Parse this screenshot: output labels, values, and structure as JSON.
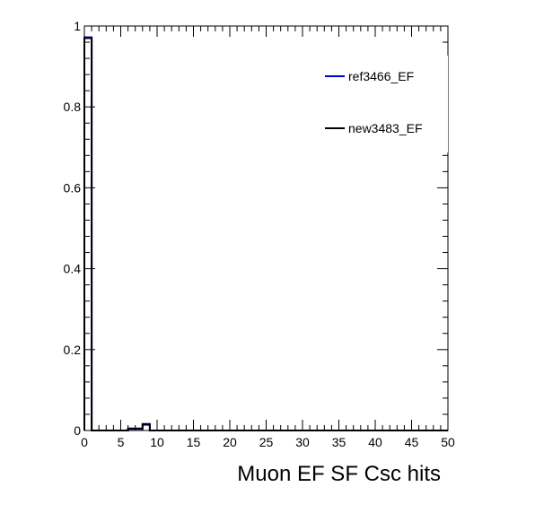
{
  "chart_data": {
    "type": "histogram",
    "title": "",
    "xlabel": "Muon EF SF Csc hits",
    "ylabel": "",
    "xlim": [
      0,
      50
    ],
    "ylim": [
      0,
      1.0
    ],
    "x_ticks": [
      0,
      5,
      10,
      15,
      20,
      25,
      30,
      35,
      40,
      45,
      50
    ],
    "y_ticks": [
      0,
      0.2,
      0.4,
      0.6,
      0.8,
      1
    ],
    "x_tick_labels": [
      "0",
      "5",
      "10",
      "15",
      "20",
      "25",
      "30",
      "35",
      "40",
      "45",
      "50"
    ],
    "y_tick_labels": [
      "0",
      "0.2",
      "0.4",
      "0.6",
      "0.8",
      "1"
    ],
    "bin_edges": [
      0,
      1,
      2,
      3,
      4,
      5,
      6,
      7,
      8,
      9,
      10,
      11,
      12,
      13,
      14,
      15,
      16,
      17,
      18,
      19,
      20,
      21,
      22,
      23,
      24,
      25,
      26,
      27,
      28,
      29,
      30,
      31,
      32,
      33,
      34,
      35,
      36,
      37,
      38,
      39,
      40,
      41,
      42,
      43,
      44,
      45,
      46,
      47,
      48,
      49,
      50
    ],
    "series": [
      {
        "name": "ref3466_EF",
        "color": "#0000cc",
        "values": [
          0.972,
          0,
          0,
          0,
          0,
          0,
          0.004,
          0.004,
          0.014,
          0,
          0,
          0,
          0,
          0,
          0,
          0,
          0,
          0,
          0,
          0,
          0,
          0,
          0,
          0,
          0,
          0,
          0,
          0,
          0,
          0,
          0,
          0,
          0,
          0,
          0,
          0,
          0,
          0,
          0,
          0,
          0,
          0,
          0,
          0,
          0,
          0,
          0,
          0,
          0,
          0
        ]
      },
      {
        "name": "new3483_EF",
        "color": "#000000",
        "values": [
          0.97,
          0,
          0,
          0,
          0,
          0,
          0.005,
          0.005,
          0.016,
          0,
          0,
          0,
          0,
          0,
          0,
          0,
          0,
          0,
          0,
          0,
          0,
          0,
          0,
          0,
          0,
          0,
          0,
          0,
          0,
          0,
          0,
          0,
          0,
          0,
          0,
          0,
          0,
          0,
          0,
          0,
          0,
          0,
          0,
          0,
          0,
          0,
          0,
          0,
          0,
          0
        ]
      }
    ],
    "legend": {
      "position": "top-right",
      "entries": [
        "ref3466_EF",
        "new3483_EF"
      ]
    },
    "grid": false
  }
}
